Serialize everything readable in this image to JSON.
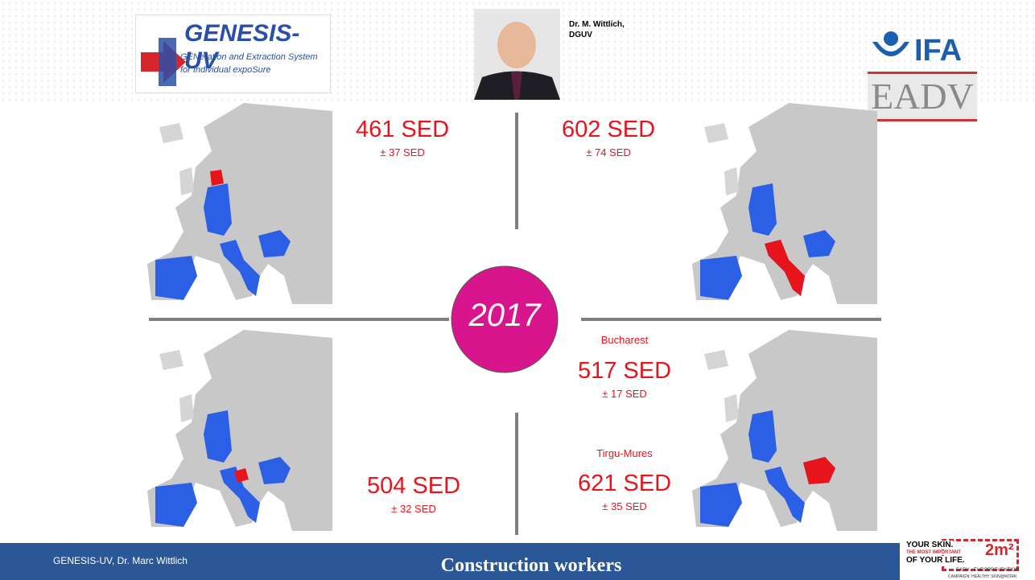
{
  "header": {
    "logo": {
      "title": "GENESIS-UV",
      "line1": "GENeration and Extraction System",
      "line2": "for Individual expoSure"
    },
    "speaker": {
      "name": "Dr. M. Wittlich,",
      "org": "DGUV"
    },
    "partner": {
      "ifa": "IFA",
      "eadv": "EADV"
    }
  },
  "center": {
    "year": "2017"
  },
  "quadrants": [
    {
      "value": "461 SED",
      "error": "± 37 SED"
    },
    {
      "value": "602 SED",
      "error": "± 74 SED"
    },
    {
      "value": "504 SED",
      "error": "± 32 SED"
    },
    {
      "city": "Bucharest",
      "value": "517 SED",
      "error": "± 17 SED"
    },
    {
      "city": "Tirgu-Mures",
      "value": "621 SED",
      "error": "± 35 SED"
    }
  ],
  "footer": {
    "left": "GENESIS-UV, Dr. Marc Wittlich",
    "title": "Construction workers"
  },
  "badge": {
    "line1": "YOUR SKIN.",
    "line2": "THE MOST IMPORTANT",
    "line3": "OF YOUR LIFE.",
    "size": "2m²",
    "line4": "EADV · EUROPREVENTION",
    "line5": "CAMPAIGN: HEALTHY SKIN@WORK"
  }
}
